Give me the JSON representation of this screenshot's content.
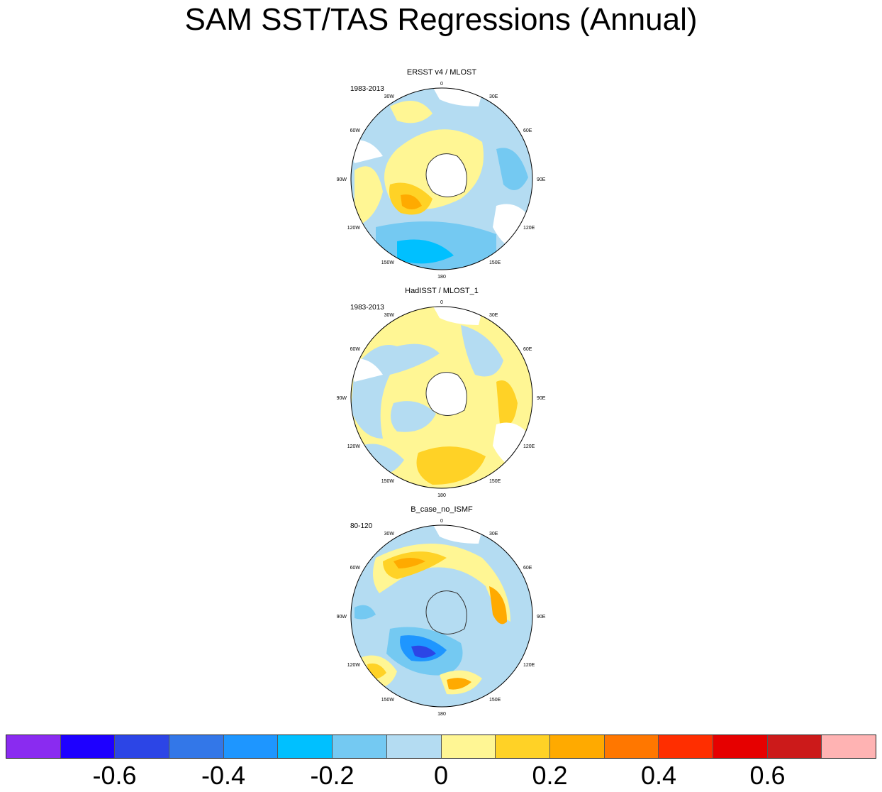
{
  "title": "SAM SST/TAS Regressions (Annual)",
  "panels": [
    {
      "title": "ERSST v4 / MLOST",
      "period": "1983-2013"
    },
    {
      "title": "HadISST / MLOST_1",
      "period": "1983-2013"
    },
    {
      "title": "B_case_no_ISMF",
      "period": "80-120"
    }
  ],
  "longitude_labels": [
    "0",
    "30E",
    "60E",
    "90E",
    "120E",
    "150E",
    "180",
    "150W",
    "120W",
    "90W",
    "60W",
    "30W"
  ],
  "colorbar": {
    "colors": [
      "#8a2bf0",
      "#1e00ff",
      "#2c45e6",
      "#3377e8",
      "#1e96ff",
      "#00c0ff",
      "#74c9f2",
      "#b4dcf2",
      "#fff694",
      "#ffd226",
      "#ffaa00",
      "#ff7700",
      "#ff2e00",
      "#e60000",
      "#cc1a1a",
      "#ffb3b3"
    ],
    "labels": [
      "-0.6",
      "-0.4",
      "-0.2",
      "0",
      "0.2",
      "0.4",
      "0.6"
    ]
  }
}
